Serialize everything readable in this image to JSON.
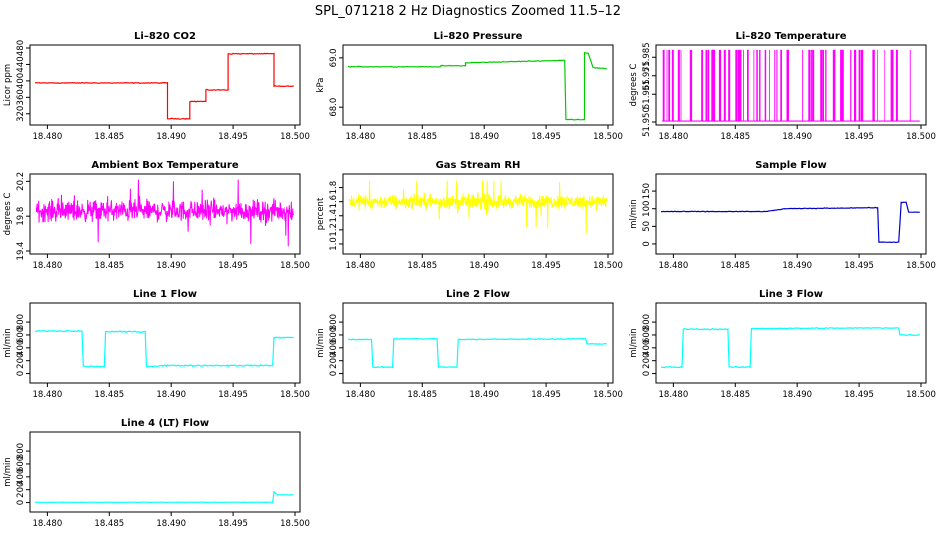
{
  "figure": {
    "title": "SPL_071218  2 Hz Diagnostics Zoomed 11.5–12"
  },
  "chart_data": [
    {
      "type": "line",
      "title": "Li–820 CO2",
      "ylabel": "Licor ppm",
      "color": "#ff0000",
      "xlim": [
        18.479,
        18.5
      ],
      "ylim": [
        300,
        480
      ],
      "xticks": [
        18.48,
        18.485,
        18.49,
        18.495,
        18.5
      ],
      "xtick_labels": [
        "18.480",
        "18.485",
        "18.490",
        "18.495",
        "18.500"
      ],
      "yticks": [
        320,
        360,
        400,
        440,
        480
      ],
      "ytick_labels": [
        "320",
        "360",
        "400",
        "440",
        "480"
      ],
      "series": [
        {
          "x": [
            18.479,
            18.4897,
            18.4897,
            18.4915,
            18.4915,
            18.4928,
            18.4928,
            18.4946,
            18.4946,
            18.4983,
            18.4983,
            18.4999
          ],
          "y": [
            395,
            395,
            308,
            308,
            350,
            350,
            378,
            378,
            466,
            466,
            387,
            387
          ],
          "noise": 1.5,
          "style": "line"
        }
      ]
    },
    {
      "type": "line",
      "title": "Li–820 Pressure",
      "ylabel": "kPa",
      "color": "#00cc00",
      "xlim": [
        18.479,
        18.5
      ],
      "ylim": [
        67.7,
        69.2
      ],
      "xticks": [
        18.48,
        18.485,
        18.49,
        18.495,
        18.5
      ],
      "xtick_labels": [
        "18.480",
        "18.485",
        "18.490",
        "18.495",
        "18.500"
      ],
      "yticks": [
        68.0,
        69.0
      ],
      "ytick_labels": [
        "68.0",
        "69.0"
      ],
      "series": [
        {
          "x": [
            18.479,
            18.4865,
            18.4865,
            18.4885,
            18.4885,
            18.4965,
            18.4966,
            18.4981,
            18.4981,
            18.4984,
            18.4988,
            18.4999
          ],
          "y": [
            68.82,
            68.82,
            68.84,
            68.84,
            68.9,
            68.95,
            67.75,
            67.75,
            69.1,
            69.1,
            68.8,
            68.78
          ],
          "noise": 0.01,
          "style": "line"
        }
      ]
    },
    {
      "type": "line",
      "title": "Li–820 Temperature",
      "ylabel": "degrees C",
      "color": "#ff00ff",
      "xlim": [
        18.479,
        18.5
      ],
      "ylim": [
        51.95,
        51.99
      ],
      "xticks": [
        18.48,
        18.485,
        18.49,
        18.495,
        18.5
      ],
      "xtick_labels": [
        "18.480",
        "18.485",
        "18.490",
        "18.495",
        "18.500"
      ],
      "yticks": [
        51.95,
        51.965,
        51.975,
        51.985
      ],
      "ytick_labels": [
        "51.950",
        "51.965",
        "51.975",
        "51.985"
      ],
      "series": [
        {
          "base": 51.9505,
          "spike": 51.989,
          "count": 60,
          "style": "spikes"
        }
      ]
    },
    {
      "type": "line",
      "title": "Ambient Box Temperature",
      "ylabel": "degrees C",
      "color": "#ff00ff",
      "xlim": [
        18.479,
        18.5
      ],
      "ylim": [
        19.4,
        20.25
      ],
      "xticks": [
        18.48,
        18.485,
        18.49,
        18.495,
        18.5
      ],
      "xtick_labels": [
        "18.480",
        "18.485",
        "18.490",
        "18.495",
        "18.500"
      ],
      "yticks": [
        19.4,
        19.8,
        20.2
      ],
      "ytick_labels": [
        "19.4",
        "19.8",
        "20.2"
      ],
      "series": [
        {
          "mean": 19.86,
          "noise": 0.11,
          "min": 19.4,
          "max": 20.22,
          "style": "noise"
        }
      ]
    },
    {
      "type": "line",
      "title": "Gas Stream RH",
      "ylabel": "percent",
      "color": "#ffff00",
      "xlim": [
        18.479,
        18.5
      ],
      "ylim": [
        0.9,
        1.95
      ],
      "xticks": [
        18.48,
        18.485,
        18.49,
        18.495,
        18.5
      ],
      "xtick_labels": [
        "18.480",
        "18.485",
        "18.490",
        "18.495",
        "18.500"
      ],
      "yticks": [
        1.0,
        1.2,
        1.4,
        1.6,
        1.8
      ],
      "ytick_labels": [
        "1.0",
        "1.2",
        "1.4",
        "1.6",
        "1.8"
      ],
      "series": [
        {
          "mean": 1.6,
          "noise": 0.09,
          "min": 0.95,
          "max": 1.9,
          "style": "noise"
        }
      ]
    },
    {
      "type": "line",
      "title": "Sample Flow",
      "ylabel": "ml/min",
      "color": "#0000cc",
      "xlim": [
        18.479,
        18.5
      ],
      "ylim": [
        -20,
        190
      ],
      "xticks": [
        18.48,
        18.485,
        18.49,
        18.495,
        18.5
      ],
      "xtick_labels": [
        "18.480",
        "18.485",
        "18.490",
        "18.495",
        "18.500"
      ],
      "yticks": [
        0,
        50,
        100,
        150
      ],
      "ytick_labels": [
        "0",
        "50",
        "100",
        "150"
      ],
      "series": [
        {
          "x": [
            18.479,
            18.4875,
            18.489,
            18.4965,
            18.4966,
            18.4982,
            18.4984,
            18.4988,
            18.499,
            18.4999
          ],
          "y": [
            92,
            92,
            100,
            103,
            5,
            5,
            118,
            118,
            90,
            90
          ],
          "noise": 1.2,
          "style": "line"
        }
      ]
    },
    {
      "type": "line",
      "title": "Line 1 Flow",
      "ylabel": "ml/min",
      "color": "#00ffff",
      "xlim": [
        18.479,
        18.5
      ],
      "ylim": [
        -100,
        1050
      ],
      "xticks": [
        18.48,
        18.485,
        18.49,
        18.495,
        18.5
      ],
      "xtick_labels": [
        "18.480",
        "18.485",
        "18.490",
        "18.495",
        "18.500"
      ],
      "yticks": [
        0,
        200,
        400,
        600,
        800
      ],
      "ytick_labels": [
        "0",
        "200",
        "400",
        "600",
        "800"
      ],
      "series": [
        {
          "x": [
            18.479,
            18.4828,
            18.4829,
            18.4846,
            18.4847,
            18.4879,
            18.488,
            18.4896,
            18.4982,
            18.4983,
            18.4999
          ],
          "y": [
            660,
            660,
            110,
            110,
            650,
            650,
            110,
            125,
            125,
            560,
            560
          ],
          "noise": 15,
          "style": "line"
        }
      ]
    },
    {
      "type": "line",
      "title": "Line 2 Flow",
      "ylabel": "ml/min",
      "color": "#00ffff",
      "xlim": [
        18.479,
        18.5
      ],
      "ylim": [
        -100,
        1050
      ],
      "xticks": [
        18.48,
        18.485,
        18.49,
        18.495,
        18.5
      ],
      "xtick_labels": [
        "18.480",
        "18.485",
        "18.490",
        "18.495",
        "18.500"
      ],
      "yticks": [
        0,
        200,
        400,
        600,
        800
      ],
      "ytick_labels": [
        "0",
        "200",
        "400",
        "600",
        "800"
      ],
      "series": [
        {
          "x": [
            18.479,
            18.4809,
            18.481,
            18.4826,
            18.4827,
            18.4862,
            18.4863,
            18.4878,
            18.4879,
            18.4982,
            18.4983,
            18.4999
          ],
          "y": [
            530,
            530,
            100,
            100,
            540,
            540,
            100,
            100,
            530,
            540,
            460,
            460
          ],
          "noise": 10,
          "style": "line"
        }
      ]
    },
    {
      "type": "line",
      "title": "Line 3 Flow",
      "ylabel": "ml/min",
      "color": "#00ffff",
      "xlim": [
        18.479,
        18.5
      ],
      "ylim": [
        -100,
        1050
      ],
      "xticks": [
        18.48,
        18.485,
        18.49,
        18.495,
        18.5
      ],
      "xtick_labels": [
        "18.480",
        "18.485",
        "18.490",
        "18.495",
        "18.500"
      ],
      "yticks": [
        0,
        200,
        400,
        600,
        800
      ],
      "ytick_labels": [
        "0",
        "200",
        "400",
        "600",
        "800"
      ],
      "series": [
        {
          "x": [
            18.479,
            18.4807,
            18.4808,
            18.4844,
            18.4845,
            18.4862,
            18.4863,
            18.4982,
            18.4983,
            18.4999
          ],
          "y": [
            100,
            100,
            690,
            690,
            100,
            100,
            700,
            710,
            600,
            600
          ],
          "noise": 12,
          "style": "line"
        }
      ]
    },
    {
      "type": "line",
      "title": "Line 4 (LT) Flow",
      "ylabel": "ml/min",
      "color": "#00ffff",
      "xlim": [
        18.479,
        18.5
      ],
      "ylim": [
        -100,
        1050
      ],
      "xticks": [
        18.48,
        18.485,
        18.49,
        18.495,
        18.5
      ],
      "xtick_labels": [
        "18.480",
        "18.485",
        "18.490",
        "18.495",
        "18.500"
      ],
      "yticks": [
        0,
        200,
        400,
        600,
        800
      ],
      "ytick_labels": [
        "0",
        "200",
        "400",
        "600",
        "800"
      ],
      "series": [
        {
          "x": [
            18.479,
            18.4982,
            18.4983,
            18.4986,
            18.4999
          ],
          "y": [
            5,
            5,
            170,
            120,
            120
          ],
          "noise": 3,
          "style": "line"
        }
      ]
    }
  ]
}
